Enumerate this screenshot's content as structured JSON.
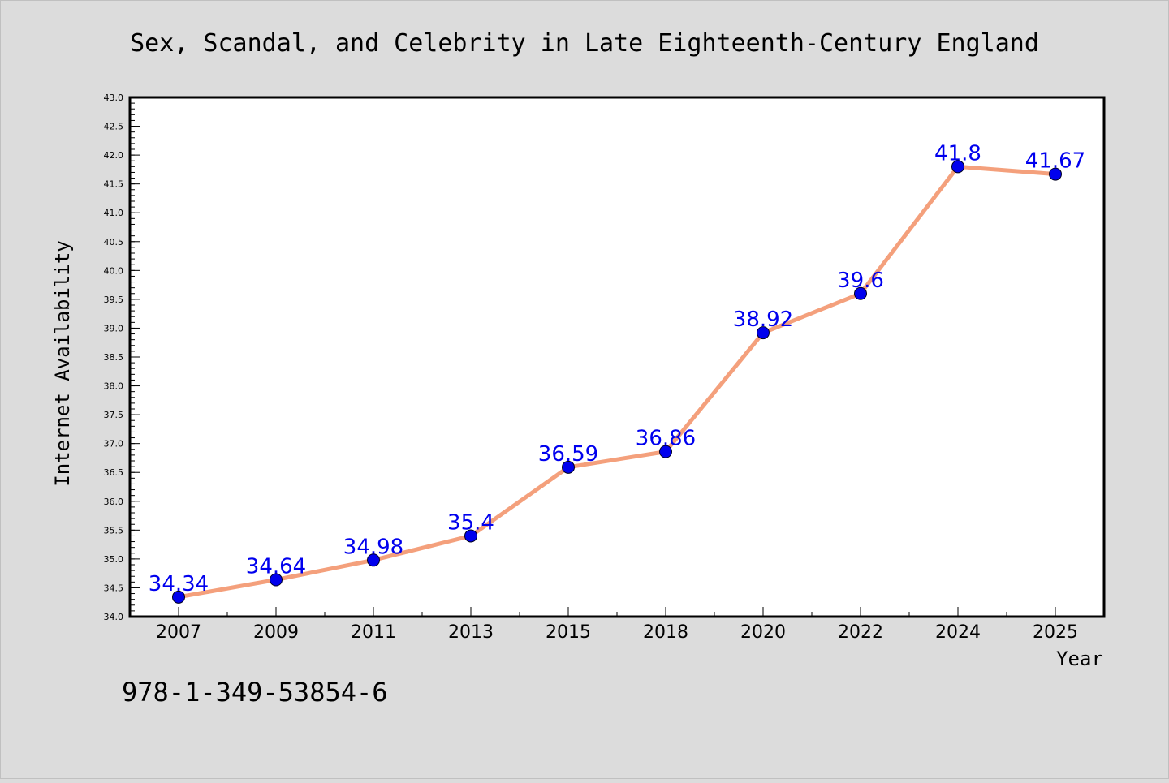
{
  "chart_data": {
    "type": "line",
    "title": "Sex, Scandal, and Celebrity in Late Eighteenth-Century England",
    "xlabel": "Year",
    "ylabel": "Internet Availability",
    "categories": [
      "2007",
      "2009",
      "2011",
      "2013",
      "2015",
      "2018",
      "2020",
      "2022",
      "2024",
      "2025"
    ],
    "series": [
      {
        "values": [
          34.34,
          34.64,
          34.98,
          35.4,
          36.59,
          36.86,
          38.92,
          39.6,
          41.8,
          41.67
        ]
      }
    ],
    "data_labels": [
      "34.34",
      "34.64",
      "34.98",
      "35.4",
      "36.59",
      "36.86",
      "38.92",
      "39.6",
      "41.8",
      "41.67"
    ],
    "ylim": [
      34.0,
      43.0
    ],
    "yticks": [
      "34.0",
      "34.5",
      "35.0",
      "35.5",
      "36.0",
      "36.5",
      "37.0",
      "37.5",
      "38.0",
      "38.5",
      "39.0",
      "39.5",
      "40.0",
      "40.5",
      "41.0",
      "41.5",
      "42.0",
      "42.5",
      "43.0"
    ],
    "grid": false,
    "line_color": "#f4a07c",
    "marker_color": "#0000ee",
    "label_color": "#0000ee",
    "background_color": "#dcdcdc",
    "plot_background": "#ffffff"
  },
  "footnote": "978-1-349-53854-6"
}
